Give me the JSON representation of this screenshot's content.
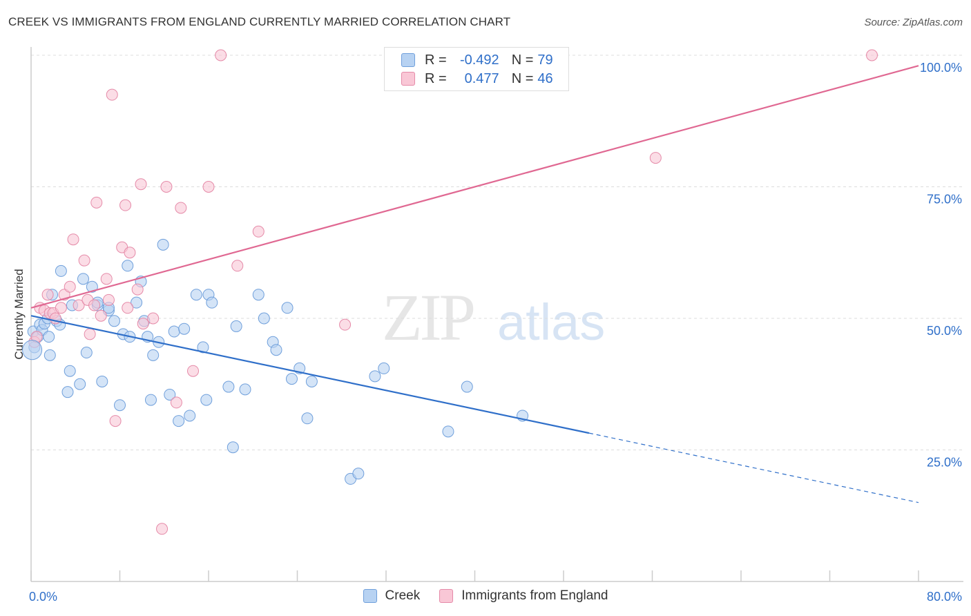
{
  "title": "CREEK VS IMMIGRANTS FROM ENGLAND CURRENTLY MARRIED CORRELATION CHART",
  "source": "Source: ZipAtlas.com",
  "watermark": {
    "zip": "ZIP",
    "atlas": "atlas"
  },
  "legend": {
    "r_label": "R =",
    "n_label": "N =",
    "rows": [
      {
        "r": "-0.492",
        "n": "79",
        "fill": "#b7d2f2",
        "stroke": "#6f9fdb"
      },
      {
        "r": "0.477",
        "n": "46",
        "fill": "#f9c7d6",
        "stroke": "#e58aa8"
      }
    ]
  },
  "bottom_legend": [
    {
      "label": "Creek",
      "fill": "#b7d2f2",
      "stroke": "#6f9fdb"
    },
    {
      "label": "Immigrants from England",
      "fill": "#f9c7d6",
      "stroke": "#e58aa8"
    }
  ],
  "chart_data": {
    "type": "scatter",
    "title": "CREEK VS IMMIGRANTS FROM ENGLAND CURRENTLY MARRIED CORRELATION CHART",
    "xlabel": "",
    "ylabel": "Currently Married",
    "xlim": [
      0,
      80
    ],
    "ylim": [
      0,
      100
    ],
    "x_tick_labels": [
      {
        "value": 0,
        "label": "0.0%"
      },
      {
        "value": 80,
        "label": "80.0%"
      }
    ],
    "y_tick_labels": [
      {
        "value": 25,
        "label": "25.0%"
      },
      {
        "value": 50,
        "label": "50.0%"
      },
      {
        "value": 75,
        "label": "75.0%"
      },
      {
        "value": 100,
        "label": "100.0%"
      }
    ],
    "grid": true,
    "legend_position": "top-center",
    "series": [
      {
        "name": "Creek",
        "color": "#6f9fdb",
        "fill": "#b7d2f2",
        "trend_color": "#2f6fc9",
        "trend": {
          "x0": 0,
          "y0": 50.5,
          "x1": 50.3,
          "y1": 28.2,
          "dash_to_x": 80,
          "dash_to_y": 15.0
        },
        "points": [
          [
            0.2,
            47.5
          ],
          [
            0.3,
            44.5
          ],
          [
            0.6,
            46.5
          ],
          [
            0.8,
            48.8
          ],
          [
            1.0,
            47.8
          ],
          [
            1.2,
            49.0
          ],
          [
            1.5,
            50.0
          ],
          [
            1.6,
            46.5
          ],
          [
            1.7,
            43.0
          ],
          [
            1.9,
            54.5
          ],
          [
            2.3,
            49.5
          ],
          [
            2.6,
            48.8
          ],
          [
            2.7,
            59.0
          ],
          [
            3.3,
            36.0
          ],
          [
            3.5,
            40.0
          ],
          [
            3.7,
            52.5
          ],
          [
            4.4,
            37.5
          ],
          [
            4.7,
            57.5
          ],
          [
            5.0,
            43.5
          ],
          [
            5.5,
            56.0
          ],
          [
            6.0,
            52.5
          ],
          [
            6.0,
            53.0
          ],
          [
            6.4,
            38.0
          ],
          [
            7.0,
            51.5
          ],
          [
            7.0,
            52.0
          ],
          [
            7.5,
            49.5
          ],
          [
            8.0,
            33.5
          ],
          [
            8.3,
            47.0
          ],
          [
            8.7,
            60.0
          ],
          [
            8.9,
            46.5
          ],
          [
            9.5,
            53.0
          ],
          [
            9.9,
            57.0
          ],
          [
            10.2,
            49.5
          ],
          [
            10.5,
            46.5
          ],
          [
            10.8,
            34.5
          ],
          [
            11.0,
            43.0
          ],
          [
            11.5,
            45.5
          ],
          [
            11.9,
            64.0
          ],
          [
            12.5,
            35.5
          ],
          [
            12.9,
            47.5
          ],
          [
            13.3,
            30.5
          ],
          [
            13.8,
            48.0
          ],
          [
            14.3,
            31.5
          ],
          [
            14.9,
            54.5
          ],
          [
            15.5,
            44.5
          ],
          [
            15.8,
            34.5
          ],
          [
            16.0,
            54.5
          ],
          [
            16.3,
            53.0
          ],
          [
            17.8,
            37.0
          ],
          [
            18.2,
            25.5
          ],
          [
            18.5,
            48.5
          ],
          [
            19.3,
            36.5
          ],
          [
            20.5,
            54.5
          ],
          [
            21.0,
            50.0
          ],
          [
            21.8,
            45.5
          ],
          [
            22.1,
            44.0
          ],
          [
            23.1,
            52.0
          ],
          [
            23.5,
            38.5
          ],
          [
            24.2,
            40.5
          ],
          [
            24.9,
            31.0
          ],
          [
            25.3,
            38.0
          ],
          [
            28.8,
            19.5
          ],
          [
            29.5,
            20.5
          ],
          [
            31.0,
            39.0
          ],
          [
            31.8,
            40.5
          ],
          [
            37.6,
            28.5
          ],
          [
            39.3,
            37.0
          ],
          [
            44.3,
            31.5
          ]
        ]
      },
      {
        "name": "Immigrants from England",
        "color": "#e58aa8",
        "fill": "#f9c7d6",
        "trend_color": "#e06892",
        "trend": {
          "x0": 0,
          "y0": 52.0,
          "x1": 80,
          "y1": 98.0
        },
        "points": [
          [
            0.3,
            45.5
          ],
          [
            0.5,
            46.5
          ],
          [
            0.8,
            52.0
          ],
          [
            1.2,
            51.5
          ],
          [
            1.5,
            54.5
          ],
          [
            1.7,
            51.0
          ],
          [
            2.0,
            51.0
          ],
          [
            2.2,
            50.0
          ],
          [
            2.7,
            52.0
          ],
          [
            3.0,
            54.5
          ],
          [
            3.5,
            56.0
          ],
          [
            3.8,
            65.0
          ],
          [
            4.3,
            52.5
          ],
          [
            4.8,
            61.0
          ],
          [
            5.1,
            53.5
          ],
          [
            5.3,
            47.0
          ],
          [
            5.7,
            52.5
          ],
          [
            5.9,
            72.0
          ],
          [
            6.3,
            50.5
          ],
          [
            6.8,
            57.5
          ],
          [
            7.0,
            53.5
          ],
          [
            7.3,
            92.5
          ],
          [
            7.6,
            30.5
          ],
          [
            8.2,
            63.5
          ],
          [
            8.5,
            71.5
          ],
          [
            8.7,
            52.0
          ],
          [
            8.9,
            62.5
          ],
          [
            9.6,
            55.5
          ],
          [
            9.9,
            75.5
          ],
          [
            10.1,
            49.0
          ],
          [
            11.0,
            50.0
          ],
          [
            11.8,
            10.0
          ],
          [
            12.2,
            75.0
          ],
          [
            13.1,
            34.0
          ],
          [
            13.5,
            71.0
          ],
          [
            14.6,
            40.0
          ],
          [
            16.0,
            75.0
          ],
          [
            17.1,
            100.0
          ],
          [
            18.6,
            60.0
          ],
          [
            20.5,
            66.5
          ],
          [
            28.3,
            48.8
          ],
          [
            56.3,
            80.5
          ],
          [
            75.8,
            100.0
          ]
        ]
      }
    ]
  }
}
